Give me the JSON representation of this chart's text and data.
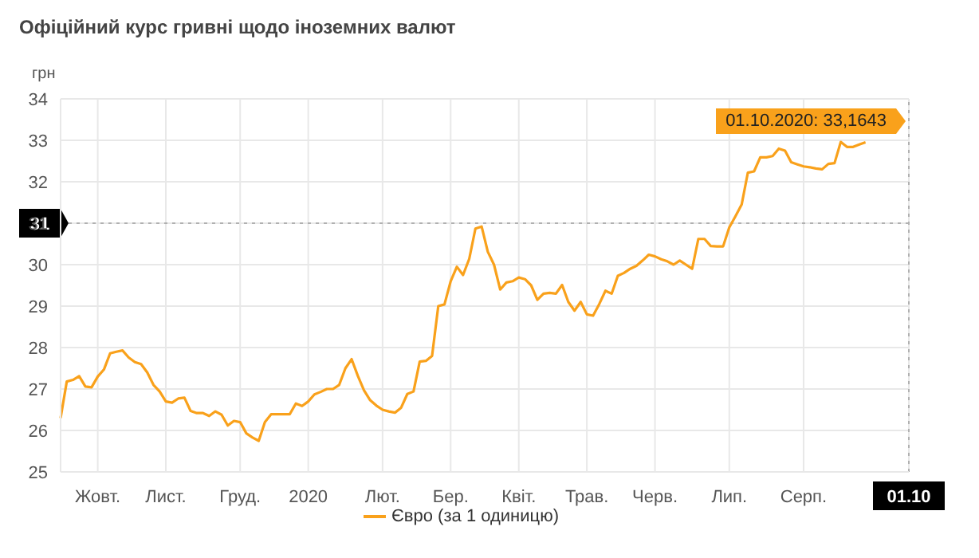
{
  "chart_data": {
    "type": "line",
    "title": "Офіційний курс гривні щодо іноземних валют",
    "ylabel": "грн",
    "categories": [
      null,
      null,
      null,
      null,
      null,
      null,
      "Жовт.",
      null,
      null,
      null,
      null,
      null,
      null,
      null,
      null,
      null,
      null,
      "Лист.",
      null,
      null,
      null,
      null,
      null,
      null,
      null,
      null,
      null,
      null,
      null,
      "Груд.",
      null,
      null,
      null,
      null,
      null,
      null,
      null,
      null,
      null,
      null,
      "2020",
      null,
      null,
      null,
      null,
      null,
      null,
      null,
      null,
      null,
      null,
      null,
      "Лют.",
      null,
      null,
      null,
      null,
      null,
      null,
      null,
      null,
      null,
      null,
      "Бер.",
      null,
      null,
      null,
      null,
      null,
      null,
      null,
      null,
      null,
      null,
      "Квіт.",
      null,
      null,
      null,
      null,
      null,
      null,
      null,
      null,
      null,
      null,
      "Трав.",
      null,
      null,
      null,
      null,
      null,
      null,
      null,
      null,
      null,
      null,
      "Черв.",
      null,
      null,
      null,
      null,
      null,
      null,
      null,
      null,
      null,
      null,
      null,
      "Лип.",
      null,
      null,
      null,
      null,
      null,
      null,
      null,
      null,
      null,
      null,
      null,
      "Серп.",
      null,
      null,
      null,
      null,
      null,
      null,
      null,
      null,
      null,
      null,
      null,
      null,
      null,
      null,
      null,
      null,
      "01.10"
    ],
    "series": [
      {
        "name": "Євро (за 1 одиницю)",
        "color": "#f9a11b",
        "values": [
          26.3,
          27.18,
          27.22,
          27.31,
          27.06,
          27.04,
          27.3,
          27.47,
          27.86,
          27.9,
          27.93,
          27.76,
          27.65,
          27.6,
          27.4,
          27.1,
          26.94,
          26.7,
          26.67,
          26.77,
          26.79,
          26.47,
          26.42,
          26.42,
          26.35,
          26.46,
          26.38,
          26.12,
          26.23,
          26.2,
          25.93,
          25.83,
          25.75,
          26.2,
          26.39,
          26.39,
          26.39,
          26.39,
          26.65,
          26.59,
          26.7,
          26.87,
          26.93,
          27.0,
          27.0,
          27.1,
          27.5,
          27.72,
          27.32,
          26.97,
          26.73,
          26.6,
          26.5,
          26.46,
          26.43,
          26.55,
          26.88,
          26.94,
          27.66,
          27.68,
          27.8,
          29.0,
          29.04,
          29.6,
          29.95,
          29.75,
          30.14,
          30.87,
          30.92,
          30.31,
          30.0,
          29.4,
          29.57,
          29.6,
          29.69,
          29.65,
          29.5,
          29.15,
          29.3,
          29.32,
          29.3,
          29.51,
          29.1,
          28.89,
          29.1,
          28.8,
          28.77,
          29.05,
          29.37,
          29.3,
          29.73,
          29.8,
          29.9,
          29.97,
          30.1,
          30.24,
          30.2,
          30.13,
          30.08,
          30.0,
          30.1,
          30.0,
          29.9,
          30.62,
          30.62,
          30.45,
          30.44,
          30.44,
          30.9,
          31.17,
          31.45,
          32.22,
          32.25,
          32.59,
          32.59,
          32.62,
          32.8,
          32.75,
          32.47,
          32.42,
          32.37,
          32.35,
          32.32,
          32.3,
          32.43,
          32.45,
          32.96,
          32.84,
          32.84,
          32.9,
          32.95,
          null,
          null,
          null,
          null,
          null,
          null,
          null
        ]
      }
    ],
    "ylim": [
      25,
      34
    ],
    "yticks": [
      25,
      26,
      27,
      28,
      29,
      30,
      31,
      32,
      33,
      34
    ],
    "grid": true,
    "legend": "bottom",
    "marker": "none",
    "line_style": "solid",
    "ref_lines": [
      {
        "axis": "y",
        "value": 31,
        "label": "31",
        "color": "#b0b0b0",
        "line_style": "dotted"
      },
      {
        "axis": "x",
        "value": "01.10",
        "color": "#b0b0b0",
        "line_style": "dotted"
      }
    ],
    "annotations": [
      "01.10.2020: 33,1643"
    ]
  }
}
